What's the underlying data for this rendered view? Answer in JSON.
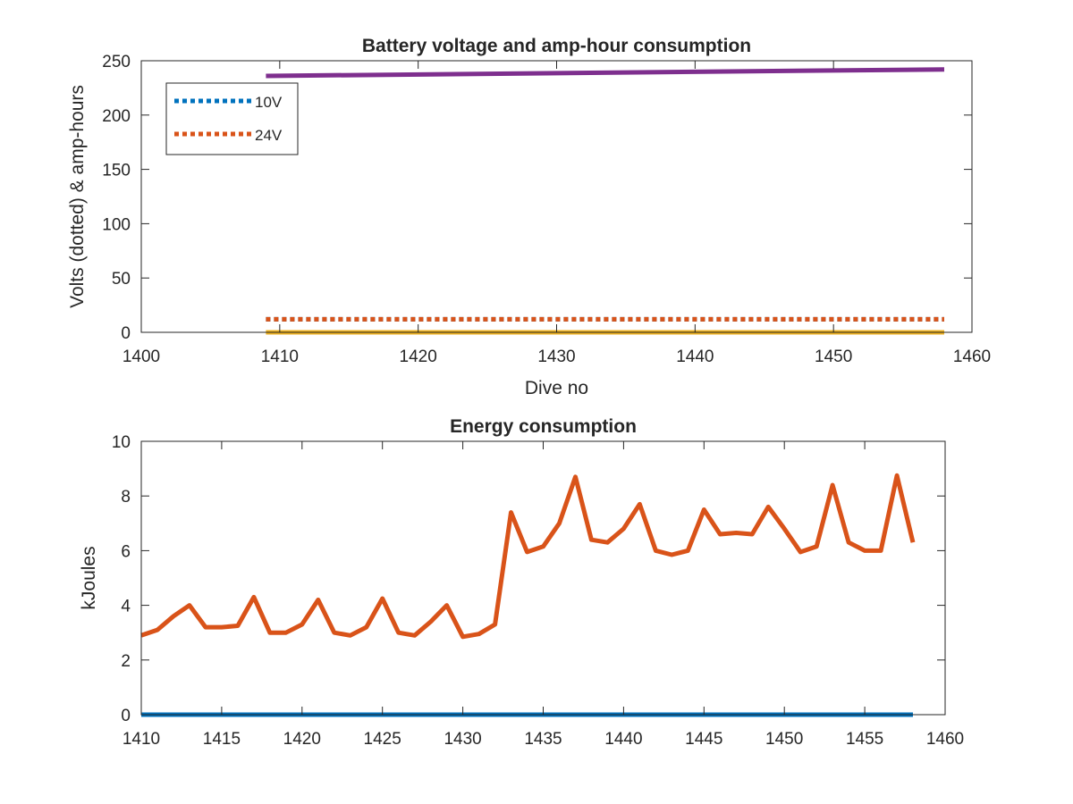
{
  "chart_data": [
    {
      "type": "line",
      "title": "Battery voltage and amp-hour consumption",
      "xlabel": "Dive no",
      "ylabel": "Volts (dotted) & amp-hours",
      "xlim": [
        1400,
        1460
      ],
      "ylim": [
        0,
        250
      ],
      "xticks": [
        1400,
        1410,
        1420,
        1430,
        1440,
        1450,
        1460
      ],
      "yticks": [
        0,
        50,
        100,
        150,
        200,
        250
      ],
      "grid": false,
      "legend_location": "top-left",
      "series": [
        {
          "name": "10V",
          "style": "dotted",
          "color": "#0072BD",
          "x": [
            1409,
            1458
          ],
          "values": [
            12,
            12
          ]
        },
        {
          "name": "24V",
          "style": "dotted",
          "color": "#D95319",
          "x": [
            1409,
            1458
          ],
          "values": [
            12,
            12
          ]
        },
        {
          "style": "solid",
          "color": "#EDB120",
          "x": [
            1409,
            1458
          ],
          "values": [
            0,
            0
          ]
        },
        {
          "style": "solid",
          "color": "#7E2F8E",
          "x": [
            1409,
            1458
          ],
          "values": [
            236,
            242
          ]
        }
      ]
    },
    {
      "type": "line",
      "title": "Energy consumption",
      "xlabel": "",
      "ylabel": "kJoules",
      "xlim": [
        1410,
        1460
      ],
      "ylim": [
        0,
        10
      ],
      "xticks": [
        1410,
        1415,
        1420,
        1425,
        1430,
        1435,
        1440,
        1445,
        1450,
        1455,
        1460
      ],
      "yticks": [
        0,
        2,
        4,
        6,
        8,
        10
      ],
      "grid": false,
      "series": [
        {
          "style": "solid",
          "color": "#D95319",
          "x": [
            1410,
            1411,
            1412,
            1413,
            1414,
            1415,
            1416,
            1417,
            1418,
            1419,
            1420,
            1421,
            1422,
            1423,
            1424,
            1425,
            1426,
            1427,
            1428,
            1429,
            1430,
            1431,
            1432,
            1433,
            1434,
            1435,
            1436,
            1437,
            1438,
            1439,
            1440,
            1441,
            1442,
            1443,
            1444,
            1445,
            1446,
            1447,
            1448,
            1449,
            1450,
            1451,
            1452,
            1453,
            1454,
            1455,
            1456,
            1457,
            1458
          ],
          "values": [
            2.9,
            3.1,
            3.6,
            4.0,
            3.2,
            3.2,
            3.25,
            4.3,
            3.0,
            3.0,
            3.3,
            4.2,
            3.0,
            2.9,
            3.2,
            4.25,
            3.0,
            2.9,
            3.4,
            4.0,
            2.85,
            2.95,
            3.3,
            7.4,
            5.95,
            6.15,
            7.0,
            8.7,
            6.4,
            6.3,
            6.8,
            7.7,
            6.0,
            5.85,
            6.0,
            7.5,
            6.6,
            6.65,
            6.6,
            7.6,
            6.8,
            5.95,
            6.15,
            8.4,
            6.3,
            6.0,
            6.0,
            8.75,
            6.3
          ]
        },
        {
          "style": "solid",
          "color": "#0072BD",
          "x": [
            1410,
            1458
          ],
          "values": [
            0,
            0
          ]
        }
      ]
    }
  ]
}
